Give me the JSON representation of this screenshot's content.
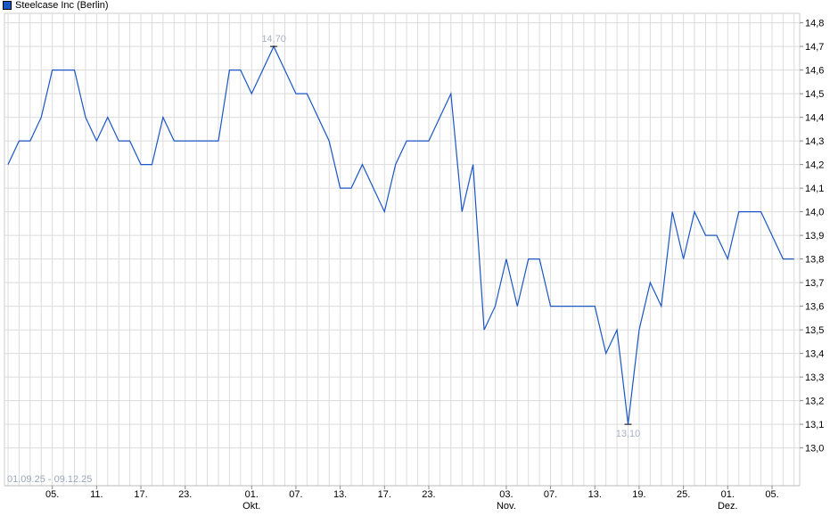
{
  "chart_data": {
    "type": "line",
    "title": "",
    "legend": {
      "position": "top-left",
      "entries": [
        "Steelcase Inc (Berlin)"
      ]
    },
    "date_range_label": "01.09.25 - 09.12.25",
    "series": [
      {
        "name": "Steelcase Inc (Berlin)",
        "color": "#1a56c4",
        "x": [
          "01.09",
          "02.09",
          "03.09",
          "04.09",
          "05.09",
          "08.09",
          "09.09",
          "10.09",
          "11.09",
          "12.09",
          "15.09",
          "16.09",
          "17.09",
          "18.09",
          "19.09",
          "22.09",
          "23.09",
          "24.09",
          "25.09",
          "26.09",
          "29.09",
          "30.09",
          "01.10",
          "02.10",
          "03.10",
          "06.10",
          "07.10",
          "08.10",
          "09.10",
          "10.10",
          "13.10",
          "14.10",
          "15.10",
          "16.10",
          "17.10",
          "20.10",
          "21.10",
          "22.10",
          "23.10",
          "24.10",
          "27.10",
          "28.10",
          "29.10",
          "30.10",
          "31.10",
          "03.11",
          "04.11",
          "05.11",
          "06.11",
          "07.11",
          "10.11",
          "11.11",
          "12.11",
          "13.11",
          "14.11",
          "17.11",
          "18.11",
          "19.11",
          "20.11",
          "21.11",
          "24.11",
          "25.11",
          "26.11",
          "27.11",
          "28.11",
          "01.12",
          "02.12",
          "03.12",
          "04.12",
          "05.12",
          "08.12",
          "09.12"
        ],
        "values": [
          14.2,
          14.3,
          14.3,
          14.4,
          14.6,
          14.6,
          14.6,
          14.4,
          14.3,
          14.4,
          14.3,
          14.3,
          14.2,
          14.2,
          14.4,
          14.3,
          14.3,
          14.3,
          14.3,
          14.3,
          14.6,
          14.6,
          14.5,
          14.6,
          14.7,
          14.6,
          14.5,
          14.5,
          14.4,
          14.3,
          14.1,
          14.1,
          14.2,
          14.1,
          14.0,
          14.2,
          14.3,
          14.3,
          14.3,
          14.4,
          14.5,
          14.0,
          14.2,
          13.5,
          13.6,
          13.8,
          13.6,
          13.8,
          13.8,
          13.6,
          13.6,
          13.6,
          13.6,
          13.6,
          13.4,
          13.5,
          13.1,
          13.5,
          13.7,
          13.6,
          14.0,
          13.8,
          14.0,
          13.9,
          13.9,
          13.8,
          14.0,
          14.0,
          14.0,
          13.9,
          13.8,
          13.8
        ]
      }
    ],
    "annotations": [
      {
        "label": "14,70",
        "x": "03.10",
        "value": 14.7,
        "kind": "high"
      },
      {
        "label": "13,10",
        "x": "18.11",
        "value": 13.1,
        "kind": "low"
      }
    ],
    "y_axis": {
      "position": "right",
      "ylim": [
        12.84,
        14.84
      ],
      "ticks": [
        13.0,
        13.1,
        13.2,
        13.3,
        13.4,
        13.5,
        13.6,
        13.7,
        13.8,
        13.9,
        14.0,
        14.1,
        14.2,
        14.3,
        14.4,
        14.5,
        14.6,
        14.7,
        14.8
      ],
      "tick_labels": [
        "13,0",
        "13,1",
        "13,2",
        "13,3",
        "13,4",
        "13,5",
        "13,6",
        "13,7",
        "13,8",
        "13,9",
        "14,0",
        "14,1",
        "14,2",
        "14,3",
        "14,4",
        "14,5",
        "14,6",
        "14,7",
        "14,8"
      ]
    },
    "x_axis": {
      "ticks": [
        {
          "x": "05.09",
          "label": "05.",
          "month": ""
        },
        {
          "x": "11.09",
          "label": "11.",
          "month": ""
        },
        {
          "x": "17.09",
          "label": "17.",
          "month": ""
        },
        {
          "x": "23.09",
          "label": "23.",
          "month": ""
        },
        {
          "x": "01.10",
          "label": "01.",
          "month": "Okt."
        },
        {
          "x": "07.10",
          "label": "07.",
          "month": ""
        },
        {
          "x": "13.10",
          "label": "13.",
          "month": ""
        },
        {
          "x": "17.10",
          "label": "17.",
          "month": ""
        },
        {
          "x": "23.10",
          "label": "23.",
          "month": ""
        },
        {
          "x": "03.11",
          "label": "03.",
          "month": "Nov."
        },
        {
          "x": "07.11",
          "label": "07.",
          "month": ""
        },
        {
          "x": "13.11",
          "label": "13.",
          "month": ""
        },
        {
          "x": "19.11",
          "label": "19.",
          "month": ""
        },
        {
          "x": "25.11",
          "label": "25.",
          "month": ""
        },
        {
          "x": "01.12",
          "label": "01.",
          "month": "Dez."
        },
        {
          "x": "05.12",
          "label": "05.",
          "month": ""
        }
      ]
    },
    "grid": true
  }
}
